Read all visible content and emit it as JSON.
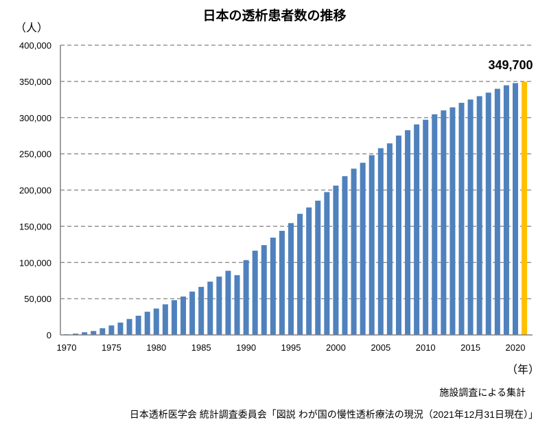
{
  "chart_data": {
    "type": "bar",
    "title": "日本の透析患者数の推移",
    "ylabel": "（人）",
    "xlabel": "（年）",
    "ylim": [
      0,
      400000
    ],
    "yticks": [
      0,
      50000,
      100000,
      150000,
      200000,
      250000,
      300000,
      350000,
      400000
    ],
    "ytick_labels": [
      "0",
      "50,000",
      "100,000",
      "150,000",
      "200,000",
      "250,000",
      "300,000",
      "350,000",
      "400,000"
    ],
    "xtick_labels": [
      "1970",
      "1975",
      "1980",
      "1985",
      "1990",
      "1995",
      "2000",
      "2005",
      "2010",
      "2015",
      "2020"
    ],
    "grid": true,
    "categories": [
      1970,
      1971,
      1972,
      1973,
      1974,
      1975,
      1976,
      1977,
      1978,
      1979,
      1980,
      1981,
      1982,
      1983,
      1984,
      1985,
      1986,
      1987,
      1988,
      1989,
      1990,
      1991,
      1992,
      1993,
      1994,
      1995,
      1996,
      1997,
      1998,
      1999,
      2000,
      2001,
      2002,
      2003,
      2004,
      2005,
      2006,
      2007,
      2008,
      2009,
      2010,
      2011,
      2012,
      2013,
      2014,
      2015,
      2016,
      2017,
      2018,
      2019,
      2020,
      2021
    ],
    "values": [
      949,
      1826,
      3631,
      5397,
      9199,
      13059,
      17000,
      22000,
      26500,
      32000,
      36397,
      42223,
      47978,
      53017,
      59811,
      66310,
      73537,
      80553,
      88534,
      82500,
      103296,
      116303,
      123926,
      134298,
      143709,
      154413,
      167192,
      175988,
      185322,
      197213,
      206134,
      219183,
      229538,
      237710,
      248166,
      257765,
      264473,
      275242,
      282622,
      290661,
      297126,
      304592,
      310007,
      314180,
      320448,
      324986,
      329609,
      334505,
      339841,
      344640,
      347671,
      349700
    ],
    "bar_color": "#4F81BD",
    "highlight_color": "#FFC000",
    "highlight_category": 2021,
    "annotation": "349,700"
  },
  "note": "施設調査による集計",
  "source": "日本透析医学会 統計調査委員会「図説 わが国の慢性透析療法の現況（2021年12月31日現在）」"
}
